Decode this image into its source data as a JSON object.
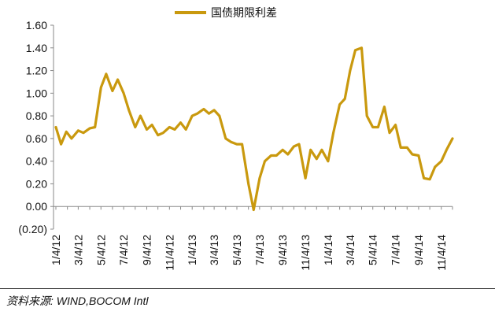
{
  "chart_data": {
    "type": "line",
    "title": "",
    "xlabel": "",
    "ylabel": "",
    "ylim": [
      -0.2,
      1.6
    ],
    "yticks": [
      "1.60",
      "1.40",
      "1.20",
      "1.00",
      "0.80",
      "0.60",
      "0.40",
      "0.20",
      "0.00",
      "(0.20)"
    ],
    "ytick_values": [
      1.6,
      1.4,
      1.2,
      1.0,
      0.8,
      0.6,
      0.4,
      0.2,
      0.0,
      -0.2
    ],
    "xticks": [
      "1/4/12",
      "3/4/12",
      "5/4/12",
      "7/4/12",
      "9/4/12",
      "11/4/12",
      "1/4/13",
      "3/4/13",
      "5/4/13",
      "7/4/13",
      "9/4/13",
      "11/4/13",
      "1/4/14",
      "3/4/14",
      "5/4/14",
      "7/4/14",
      "9/4/14",
      "11/4/14"
    ],
    "grid": false,
    "legend_position": "top",
    "series": [
      {
        "name": "国债期限利差",
        "color": "#C9990E",
        "x": [
          "2012-01-04",
          "2012-01-18",
          "2012-02-01",
          "2012-02-15",
          "2012-03-04",
          "2012-03-18",
          "2012-04-04",
          "2012-04-18",
          "2012-05-04",
          "2012-05-18",
          "2012-06-04",
          "2012-06-18",
          "2012-07-04",
          "2012-07-18",
          "2012-08-04",
          "2012-08-18",
          "2012-09-04",
          "2012-09-18",
          "2012-10-04",
          "2012-10-18",
          "2012-11-04",
          "2012-11-18",
          "2012-12-04",
          "2012-12-18",
          "2013-01-04",
          "2013-01-18",
          "2013-02-04",
          "2013-02-18",
          "2013-03-04",
          "2013-03-18",
          "2013-04-04",
          "2013-04-18",
          "2013-05-04",
          "2013-05-18",
          "2013-06-04",
          "2013-06-18",
          "2013-07-04",
          "2013-07-18",
          "2013-08-04",
          "2013-08-18",
          "2013-09-04",
          "2013-09-18",
          "2013-10-04",
          "2013-10-18",
          "2013-11-04",
          "2013-11-18",
          "2013-12-04",
          "2013-12-18",
          "2014-01-04",
          "2014-01-18",
          "2014-02-04",
          "2014-02-18",
          "2014-03-04",
          "2014-03-18",
          "2014-04-04",
          "2014-04-18",
          "2014-05-04",
          "2014-05-18",
          "2014-06-04",
          "2014-06-18",
          "2014-07-04",
          "2014-07-18",
          "2014-08-04",
          "2014-08-18",
          "2014-09-04",
          "2014-09-18",
          "2014-10-04",
          "2014-10-18",
          "2014-11-04",
          "2014-11-18",
          "2014-12-04"
        ],
        "values": [
          0.7,
          0.55,
          0.66,
          0.6,
          0.67,
          0.65,
          0.69,
          0.7,
          1.05,
          1.17,
          1.02,
          1.12,
          1.0,
          0.85,
          0.7,
          0.8,
          0.68,
          0.72,
          0.63,
          0.65,
          0.7,
          0.68,
          0.74,
          0.68,
          0.8,
          0.82,
          0.86,
          0.82,
          0.85,
          0.8,
          0.6,
          0.57,
          0.55,
          0.55,
          0.2,
          -0.03,
          0.25,
          0.4,
          0.45,
          0.45,
          0.5,
          0.46,
          0.53,
          0.55,
          0.25,
          0.5,
          0.42,
          0.5,
          0.4,
          0.65,
          0.9,
          0.95,
          1.2,
          1.38,
          1.4,
          0.8,
          0.7,
          0.7,
          0.88,
          0.65,
          0.72,
          0.52,
          0.52,
          0.46,
          0.45,
          0.25,
          0.24,
          0.35,
          0.4,
          0.5,
          0.6
        ]
      }
    ]
  },
  "legend": {
    "label": "国债期限利差"
  },
  "source": {
    "text": "资料来源: WIND,BOCOM Intl"
  }
}
